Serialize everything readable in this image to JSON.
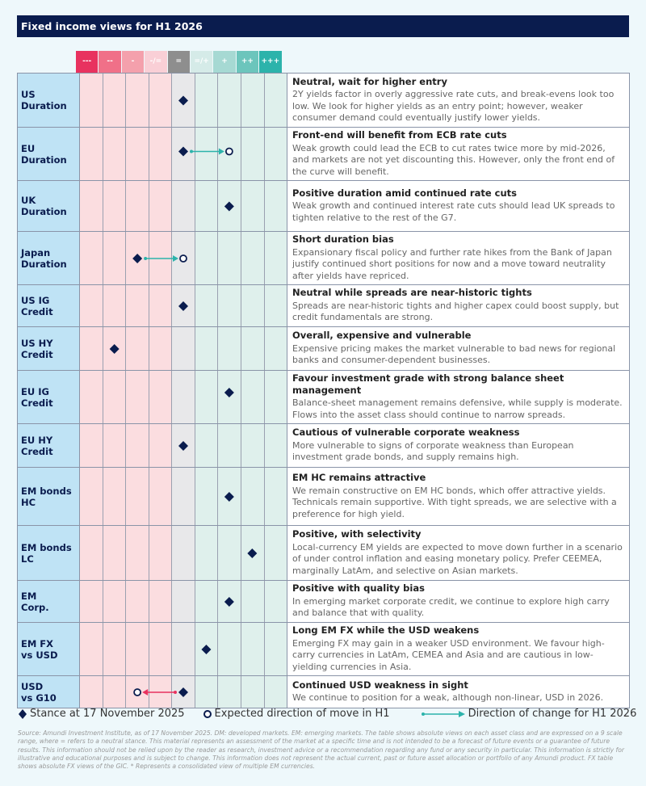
{
  "title": "Fixed income views for H1 2026",
  "chart_data": {
    "type": "table",
    "scale": [
      "---",
      "--",
      "-",
      "-/=",
      "=",
      "=/+",
      "+",
      "++",
      "+++"
    ],
    "scale_colors": [
      "#e8325f",
      "#f07088",
      "#f4a0ac",
      "#f9cfd6",
      "#8e8e8e",
      "#d5ebe8",
      "#a6d9d3",
      "#6cc5bc",
      "#2cb3ab"
    ],
    "rows": [
      {
        "label": [
          "US",
          "Duration"
        ],
        "stance": "=",
        "expected": null,
        "headline": "Neutral, wait for higher entry",
        "text": "2Y yields factor in overly aggressive rate cuts, and break-evens look too low. We look for higher yields as an entry point; however, weaker consumer demand could eventually justify lower yields."
      },
      {
        "label": [
          "EU",
          "Duration"
        ],
        "stance": "=",
        "expected": "+",
        "headline": "Front-end will benefit from ECB rate cuts",
        "text": "Weak growth could lead the ECB to cut rates twice more by mid-2026, and markets are not yet discounting this. However, only the front end of the curve will benefit."
      },
      {
        "label": [
          "UK",
          "Duration"
        ],
        "stance": "+",
        "expected": null,
        "headline": "Positive duration amid continued rate cuts",
        "text": "Weak growth and continued interest rate cuts should lead UK spreads to tighten relative to the rest of the G7."
      },
      {
        "label": [
          "Japan",
          "Duration"
        ],
        "stance": "-",
        "expected": "=",
        "headline": "Short duration bias",
        "text": "Expansionary fiscal policy and further rate hikes from the Bank of Japan justify continued short positions for now and a move toward neutrality after yields have repriced."
      },
      {
        "label": [
          "US IG",
          "Credit"
        ],
        "stance": "=",
        "expected": null,
        "headline": "Neutral while spreads are near-historic tights",
        "text": "Spreads are near-historic tights and higher capex could boost supply, but credit fundamentals are strong."
      },
      {
        "label": [
          "US HY",
          "Credit"
        ],
        "stance": "--",
        "expected": null,
        "headline": "Overall, expensive and vulnerable",
        "text": "Expensive pricing makes the market vulnerable to bad news for regional banks and consumer-dependent businesses."
      },
      {
        "label": [
          "EU IG",
          "Credit"
        ],
        "stance": "+",
        "expected": null,
        "headline": "Favour investment grade with strong balance sheet management",
        "text": "Balance-sheet management remains defensive, while supply is moderate. Flows into the asset class should continue to narrow spreads."
      },
      {
        "label": [
          "EU HY",
          "Credit"
        ],
        "stance": "=",
        "expected": null,
        "headline": "Cautious of vulnerable corporate weakness",
        "text": "More vulnerable to signs of corporate weakness than European investment grade bonds, and supply remains high."
      },
      {
        "label": [
          "EM bonds",
          "HC"
        ],
        "stance": "+",
        "expected": null,
        "headline": "EM HC remains attractive",
        "text": "We remain constructive on EM HC bonds, which offer attractive yields. Technicals remain supportive. With tight spreads, we are selective with a preference for high yield."
      },
      {
        "label": [
          "EM bonds",
          "LC"
        ],
        "stance": "++",
        "expected": null,
        "headline": "Positive, with selectivity",
        "text": "Local-currency EM yields are expected to move down further in a scenario of under control inflation and easing monetary policy. Prefer CEEMEA, marginally LatAm, and selective on Asian markets."
      },
      {
        "label": [
          "EM",
          "Corp."
        ],
        "stance": "+",
        "expected": null,
        "headline": "Positive with quality bias",
        "text": "In emerging market corporate credit, we continue to explore high carry and balance that with quality."
      },
      {
        "label": [
          "EM FX",
          "vs USD"
        ],
        "stance": "=/+",
        "expected": null,
        "headline": "Long EM FX while the USD weakens",
        "text": "Emerging FX may gain in a weaker USD environment. We favour high-carry currencies in LatAm, CEMEA and Asia and are cautious in low-yielding currencies in Asia."
      },
      {
        "label": [
          "USD",
          "vs G10"
        ],
        "stance": "=",
        "expected": "-",
        "headline": "Continued USD weakness in sight",
        "text": "We continue to position for a weak, although non-linear, USD in 2026."
      }
    ]
  },
  "colors": {
    "navy": "#0a1c4e",
    "arrow_up": "#2cb3ab",
    "arrow_down": "#e8325f"
  },
  "legend": {
    "stance": "Stance at 17 November 2025",
    "expected": "Expected direction of move in H1",
    "direction": "Direction of change for H1 2026"
  },
  "source": "Source: Amundi Investment Institute, as of 17 November 2025. DM: developed markets. EM: emerging markets. The table shows absolute views on each asset class and are expressed on a 9 scale range, where = refers to a neutral stance. This material represents an assessment of the market at a specific time and is not intended to be a forecast of future events or a guarantee of future results. This information should not be relied upon by the reader as research, investment advice or a recommendation regarding any fund or any security in particular. This information is strictly for illustrative and educational purposes and is subject to change. This information does not represent the actual current, past or future asset allocation or portfolio of any Amundi product. FX table shows absolute FX views of the GIC. * Represents a consolidated view of multiple EM currencies."
}
